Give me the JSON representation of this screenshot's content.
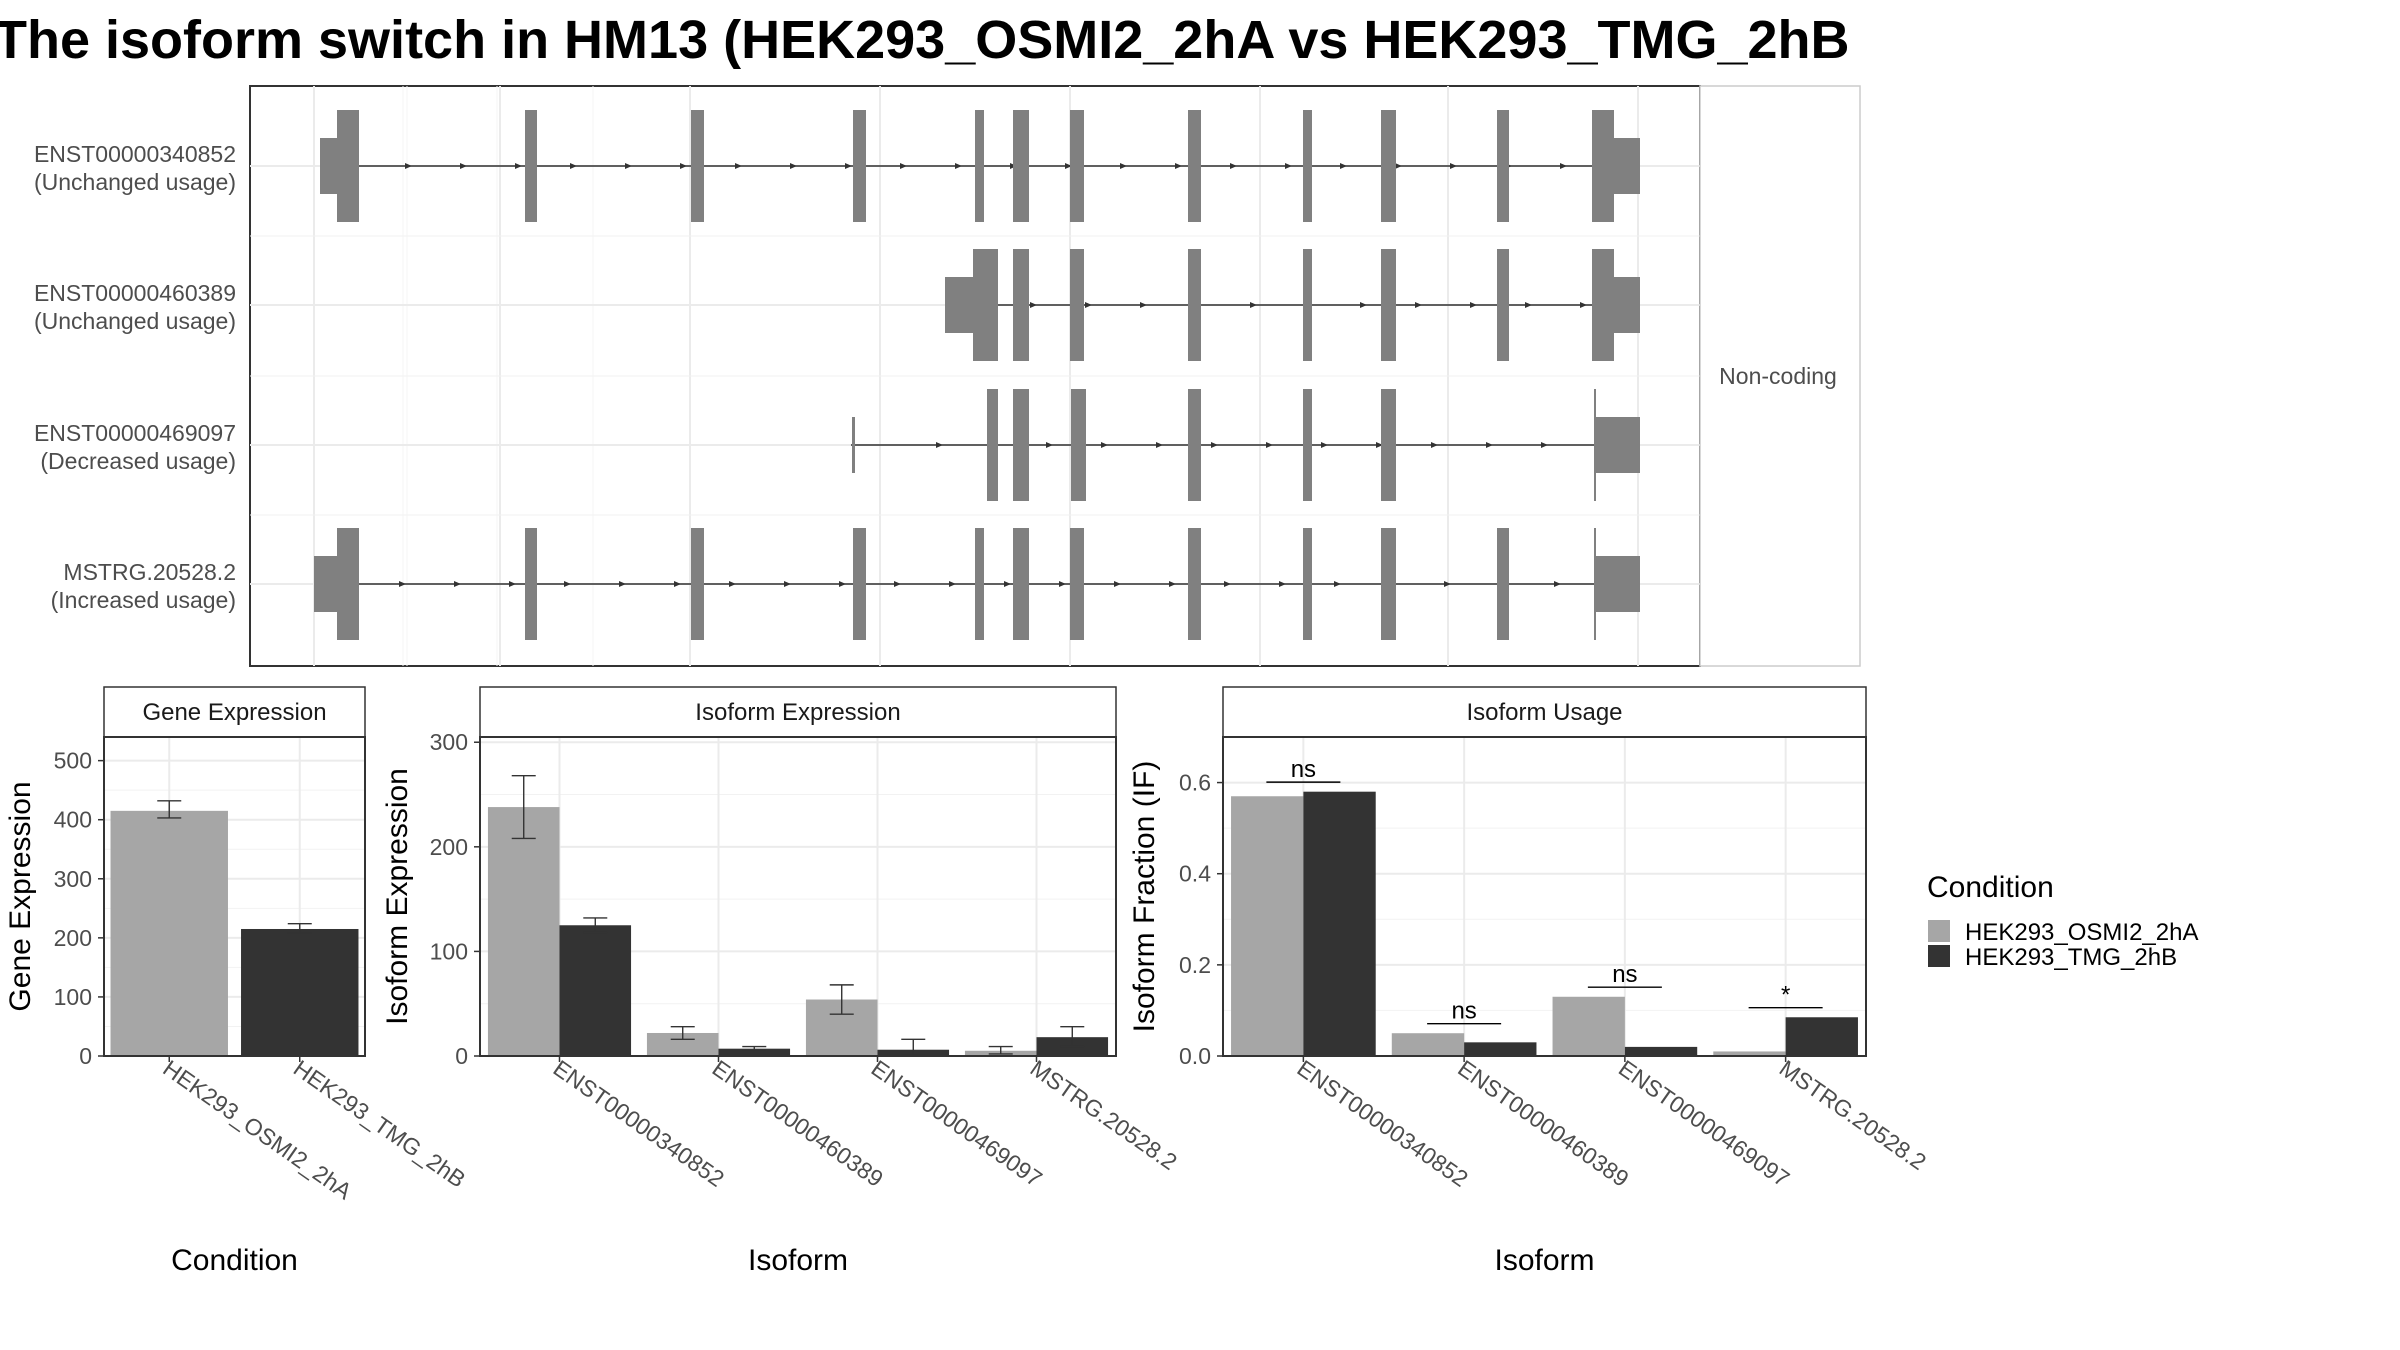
{
  "title": "The isoform switch in HM13 (HEK293_OSMI2_2hA vs HEK293_TMG_2hB",
  "structure": {
    "facet_label": "Non-coding",
    "transcripts": [
      {
        "id": "ENST00000340852",
        "usage": "(Unchanged usage)"
      },
      {
        "id": "ENST00000460389",
        "usage": "(Unchanged usage)"
      },
      {
        "id": "ENST00000469097",
        "usage": "(Decreased usage)"
      },
      {
        "id": "MSTRG.20528.2",
        "usage": "(Increased usage)"
      }
    ]
  },
  "legend": {
    "title": "Condition",
    "items": [
      {
        "label": "HEK293_OSMI2_2hA",
        "color": "#a6a6a6"
      },
      {
        "label": "HEK293_TMG_2hB",
        "color": "#333333"
      }
    ]
  },
  "chart_data": [
    {
      "type": "bar",
      "title": "Gene Expression",
      "xlabel": "Condition",
      "ylabel": "Gene Expression",
      "categories": [
        "HEK293_OSMI2_2hA",
        "HEK293_TMG_2hB"
      ],
      "ylim": [
        0,
        540
      ],
      "yticks": [
        0,
        100,
        200,
        300,
        400,
        500
      ],
      "grouping": "single",
      "series": [
        {
          "name": "HEK293_OSMI2_2hA",
          "values": [
            415,
            null
          ],
          "err_low": [
            403,
            null
          ],
          "err_high": [
            432,
            null
          ]
        },
        {
          "name": "HEK293_TMG_2hB",
          "values": [
            null,
            215
          ],
          "err_low": [
            null,
            208
          ],
          "err_high": [
            null,
            224
          ]
        }
      ]
    },
    {
      "type": "bar",
      "title": "Isoform Expression",
      "xlabel": "Isoform",
      "ylabel": "Isoform Expression",
      "categories": [
        "ENST00000340852",
        "ENST00000460389",
        "ENST00000469097",
        "MSTRG.20528.2"
      ],
      "ylim": [
        0,
        305
      ],
      "yticks": [
        0,
        100,
        200,
        300
      ],
      "grouping": "dodge",
      "series": [
        {
          "name": "HEK293_OSMI2_2hA",
          "values": [
            238,
            22,
            54,
            5
          ],
          "err_low": [
            208,
            16,
            40,
            2
          ],
          "err_high": [
            268,
            28,
            68,
            9
          ]
        },
        {
          "name": "HEK293_TMG_2hB",
          "values": [
            125,
            7,
            6,
            18
          ],
          "err_low": [
            118,
            5,
            1,
            9
          ],
          "err_high": [
            132,
            9,
            16,
            28
          ]
        }
      ]
    },
    {
      "type": "bar",
      "title": "Isoform Usage",
      "xlabel": "Isoform",
      "ylabel": "Isoform Fraction (IF)",
      "categories": [
        "ENST00000340852",
        "ENST00000460389",
        "ENST00000469097",
        "MSTRG.20528.2"
      ],
      "ylim": [
        0,
        0.7
      ],
      "yticks": [
        0.0,
        0.2,
        0.4,
        0.6
      ],
      "grouping": "dodge",
      "series": [
        {
          "name": "HEK293_OSMI2_2hA",
          "values": [
            0.57,
            0.05,
            0.13,
            0.01
          ]
        },
        {
          "name": "HEK293_TMG_2hB",
          "values": [
            0.58,
            0.03,
            0.02,
            0.085
          ]
        }
      ],
      "significance": [
        "ns",
        "ns",
        "ns",
        "*"
      ]
    }
  ]
}
